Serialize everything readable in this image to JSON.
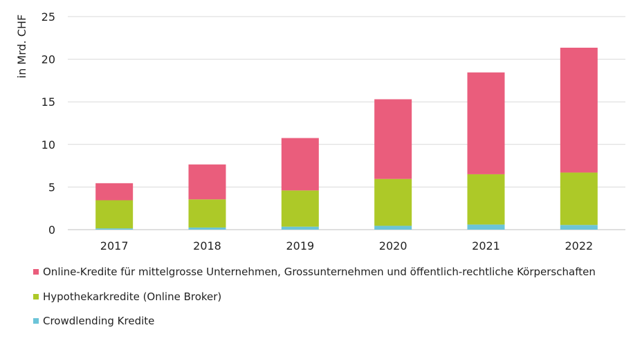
{
  "chart_data": {
    "type": "bar",
    "stacked": true,
    "categories": [
      "2017",
      "2018",
      "2019",
      "2020",
      "2021",
      "2022"
    ],
    "series": [
      {
        "name": "Crowdlending Kredite",
        "color": "#6cc4d8",
        "values": [
          0.15,
          0.25,
          0.35,
          0.45,
          0.6,
          0.55
        ]
      },
      {
        "name": "Hypothekarkredite (Online Broker)",
        "color": "#adc928",
        "values": [
          3.3,
          3.3,
          4.25,
          5.5,
          5.9,
          6.15
        ]
      },
      {
        "name": "Online-Kredite für mittelgrosse Unternehmen, Grossunternehmen und öffentlich-rechtliche Körperschaften",
        "color": "#ea5d7c",
        "values": [
          2.0,
          4.1,
          6.15,
          9.35,
          11.95,
          14.65
        ]
      }
    ],
    "ylabel": "in Mrd. CHF",
    "xlabel": "",
    "ylim": [
      0,
      25
    ],
    "yticks": [
      0,
      5,
      10,
      15,
      20,
      25
    ],
    "grid": true,
    "legend_position": "bottom"
  }
}
